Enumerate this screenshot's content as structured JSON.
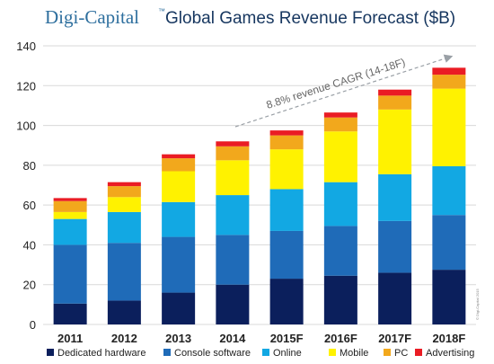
{
  "header": {
    "brand": "Digi-Capital",
    "trademark": "™",
    "title": "Global Games Revenue Forecast ($B)"
  },
  "chart_data": {
    "type": "bar",
    "stacked": true,
    "categories": [
      "2011",
      "2012",
      "2013",
      "2014",
      "2015F",
      "2016F",
      "2017F",
      "2018F"
    ],
    "ylim": [
      0,
      140
    ],
    "yticks": [
      0,
      20,
      40,
      60,
      80,
      100,
      120,
      140
    ],
    "grid": true,
    "legend_position": "bottom",
    "series": [
      {
        "name": "Dedicated hardware",
        "color": "#0b1f5c",
        "values": [
          10.5,
          12,
          16,
          20,
          23,
          24.5,
          26,
          27.5
        ]
      },
      {
        "name": "Console software",
        "color": "#1f6bb8",
        "values": [
          29.5,
          29,
          28,
          25,
          24,
          25,
          26,
          27.5
        ]
      },
      {
        "name": "Online",
        "color": "#12a8e3",
        "values": [
          13,
          15.5,
          17.5,
          20,
          21,
          22,
          23.5,
          24.5
        ]
      },
      {
        "name": "Mobile",
        "color": "#fff200",
        "values": [
          3.5,
          7.5,
          15.5,
          17.5,
          20,
          25.5,
          32.5,
          39
        ]
      },
      {
        "name": "PC",
        "color": "#f2a81c",
        "values": [
          5.5,
          5.5,
          6.5,
          7,
          7,
          7,
          7,
          7
        ]
      },
      {
        "name": "Advertising",
        "color": "#ea1c24",
        "values": [
          1.5,
          2,
          2,
          2.5,
          2.5,
          2.5,
          3,
          3.5
        ]
      }
    ],
    "annotation": {
      "text": "8.8% revenue CAGR (14-18F)"
    },
    "watermark": "© Digi-Capital 2015"
  }
}
